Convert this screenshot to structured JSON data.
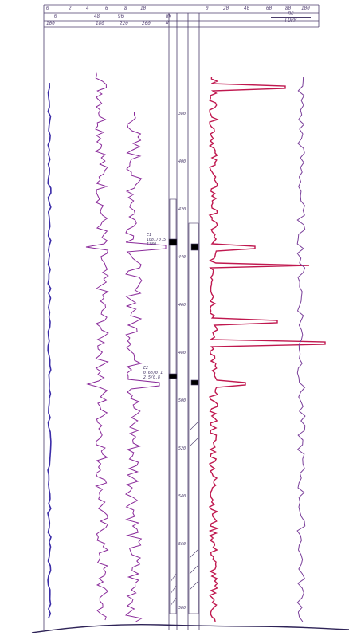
{
  "colors": {
    "frame": "#4b3d6b",
    "left_curve": "#3a2ba8",
    "middle_curves": "#8a2a9a",
    "red_curve": "#c0184f",
    "right_curve": "#7a3f9a",
    "lithology_fill": "#000000",
    "paper": "#ffffff"
  },
  "header": {
    "top_scale": [
      "0",
      "2",
      "4",
      "6",
      "8",
      "10",
      "",
      "0",
      "20",
      "40",
      "60",
      "80",
      "100"
    ],
    "second_scale": [
      "0",
      "",
      "",
      "48",
      "96",
      "",
      "Rk"
    ],
    "third_scale": [
      "100",
      "",
      "180",
      "220",
      "260"
    ],
    "resistivity_label": "Ω",
    "legend_top": "ПС",
    "legend_bottom": "ГОРЯ"
  },
  "depth_labels": [
    "380",
    "400",
    "420",
    "440",
    "460",
    "480",
    "500",
    "520",
    "540",
    "560",
    "580"
  ],
  "annotations": {
    "upper": [
      "Е1",
      "1081/0.5",
      "1380"
    ],
    "lower": [
      "Е2",
      "0.68/0.1",
      "2.5/0.8"
    ]
  },
  "icons": {
    "lithology": "lithology-column-icon"
  }
}
